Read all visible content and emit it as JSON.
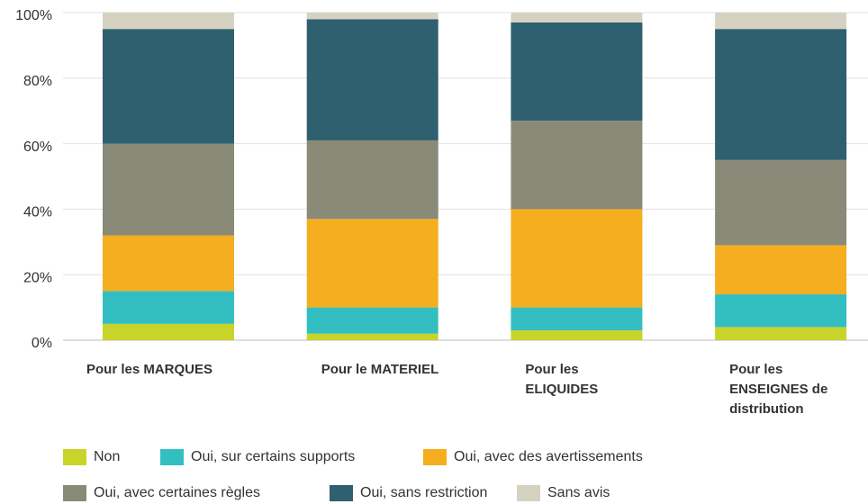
{
  "chart_data": {
    "type": "stacked_bar",
    "categories": [
      "Pour les MARQUES",
      "Pour le MATERIEL",
      "Pour les ELIQUIDES",
      "Pour les ENSEIGNES de distribution"
    ],
    "series": [
      {
        "name": "Non",
        "color": "#c8d42a",
        "values": [
          5,
          2,
          3,
          4
        ]
      },
      {
        "name": "Oui, sur certains supports",
        "color": "#33bfc1",
        "values": [
          10,
          8,
          7,
          10
        ]
      },
      {
        "name": "Oui, avec des avertissements",
        "color": "#f5ae1f",
        "values": [
          17,
          27,
          30,
          15
        ]
      },
      {
        "name": "Oui, avec certaines règles",
        "color": "#8a8a78",
        "values": [
          28,
          24,
          27,
          26
        ]
      },
      {
        "name": "Oui, sans restriction",
        "color": "#2e6070",
        "values": [
          35,
          37,
          30,
          40
        ]
      },
      {
        "name": "Sans avis",
        "color": "#d6d2c2",
        "values": [
          5,
          2,
          3,
          5
        ]
      }
    ],
    "ylim": [
      0,
      100
    ],
    "yticks": [
      {
        "value": 0,
        "label": "0%"
      },
      {
        "value": 20,
        "label": "20%"
      },
      {
        "value": 40,
        "label": "40%"
      },
      {
        "value": 60,
        "label": "60%"
      },
      {
        "value": 80,
        "label": "80%"
      },
      {
        "value": 100,
        "label": "100%"
      }
    ],
    "grid": true
  }
}
